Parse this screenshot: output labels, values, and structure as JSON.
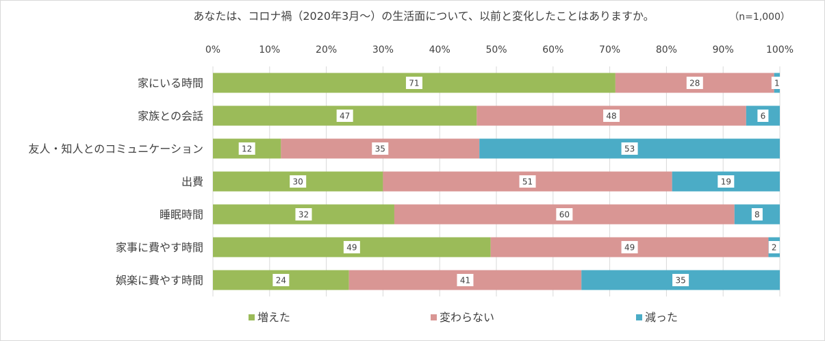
{
  "chart_data": {
    "type": "bar",
    "orientation": "horizontal",
    "stacked": "percent",
    "title": "あなたは、コロナ禍（2020年3月～）の生活面について、以前と変化したことはありますか。",
    "note": "（n=1,000）",
    "categories": [
      "家にいる時間",
      "家族との会話",
      "友人・知人とのコミュニケーション",
      "出費",
      "睡眠時間",
      "家事に費やす時間",
      "娯楽に費やす時間"
    ],
    "series": [
      {
        "name": "増えた",
        "color": "#9bbb59",
        "values": [
          71,
          47,
          12,
          30,
          32,
          49,
          24
        ]
      },
      {
        "name": "変わらない",
        "color": "#d99694",
        "values": [
          28,
          48,
          35,
          51,
          60,
          49,
          41
        ]
      },
      {
        "name": "減った",
        "color": "#4bacc6",
        "values": [
          1,
          6,
          53,
          19,
          8,
          2,
          35
        ]
      }
    ],
    "xlim": [
      0,
      100
    ],
    "xticks": [
      "0%",
      "10%",
      "20%",
      "30%",
      "40%",
      "50%",
      "60%",
      "70%",
      "80%",
      "90%",
      "100%"
    ],
    "legend_position": "bottom",
    "grid": "vertical"
  }
}
